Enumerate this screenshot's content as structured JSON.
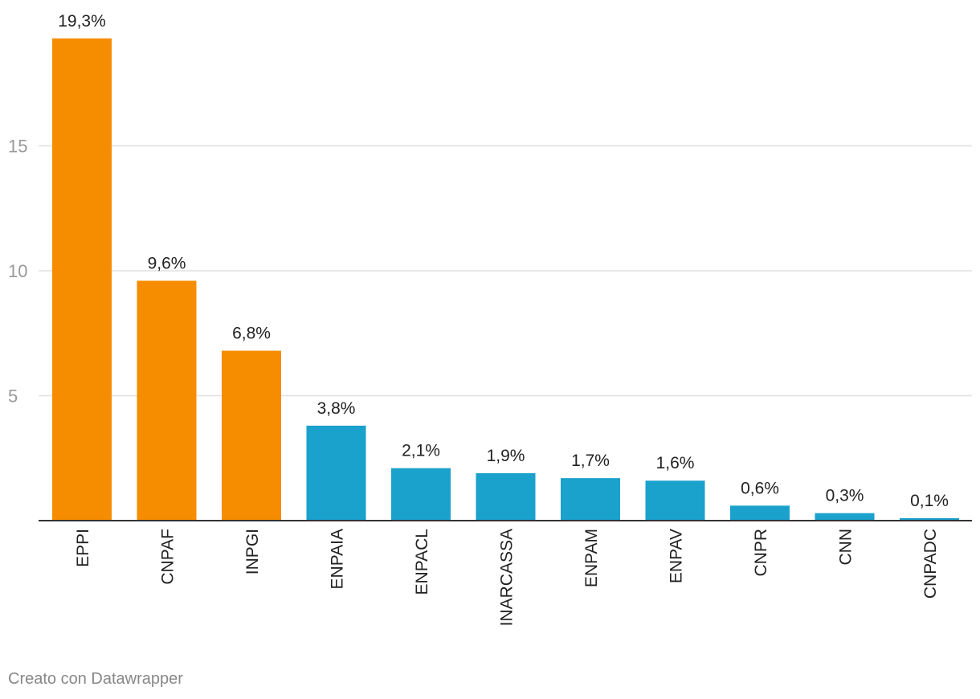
{
  "chart_data": {
    "type": "bar",
    "title": "",
    "xlabel": "",
    "ylabel": "",
    "ylim": [
      0,
      20
    ],
    "yticks": [
      5,
      10,
      15
    ],
    "grid": true,
    "categories": [
      "EPPI",
      "CNPAF",
      "INPGI",
      "ENPAIA",
      "ENPACL",
      "INARCASSA",
      "ENPAM",
      "ENPAV",
      "CNPR",
      "CNN",
      "CNPADC"
    ],
    "values": [
      19.3,
      9.6,
      6.8,
      3.8,
      2.1,
      1.9,
      1.7,
      1.6,
      0.6,
      0.3,
      0.1
    ],
    "value_labels": [
      "19,3%",
      "9,6%",
      "6,8%",
      "3,8%",
      "2,1%",
      "1,9%",
      "1,7%",
      "1,6%",
      "0,6%",
      "0,3%",
      "0,1%"
    ],
    "highlight_count": 3,
    "colors": {
      "highlight": "#f68c00",
      "default": "#1aa1cc",
      "grid": "#e0e0e0",
      "axis": "#333333",
      "tick_text": "#999999",
      "label_text": "#222222"
    }
  },
  "footer": {
    "credit": "Creato con Datawrapper"
  }
}
